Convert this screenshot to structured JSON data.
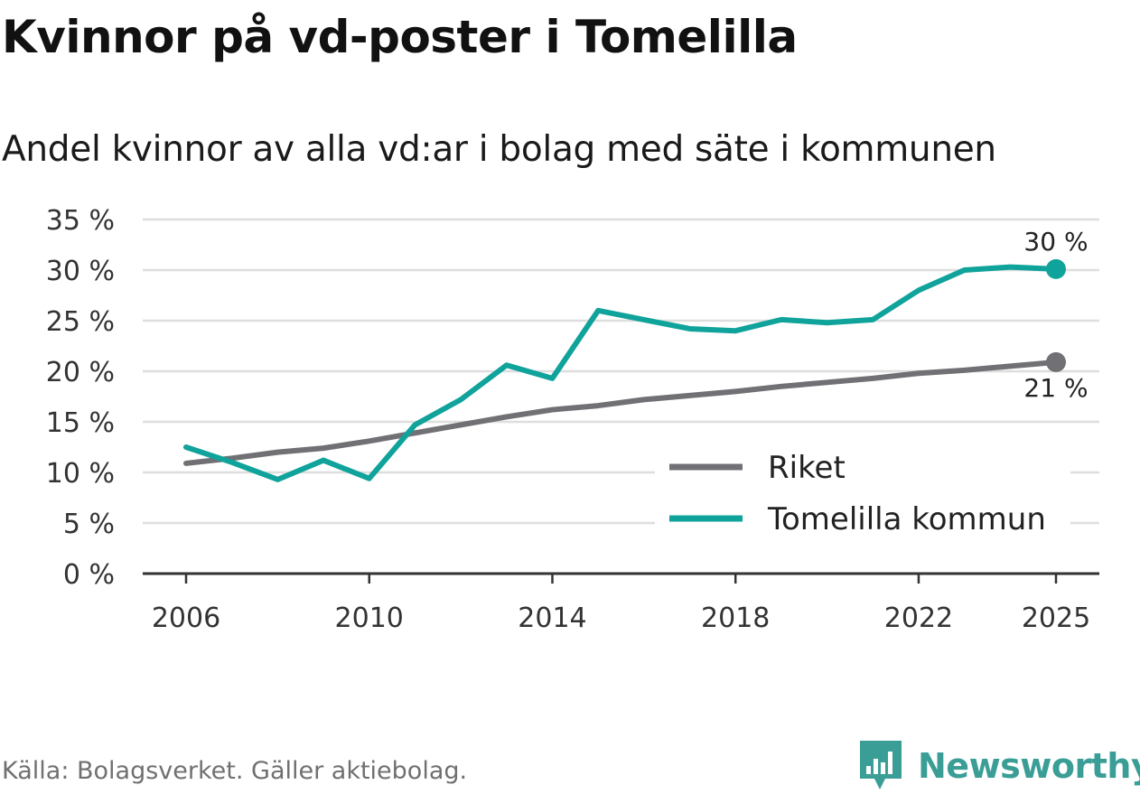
{
  "title": "Kvinnor på vd-poster i Tomelilla",
  "subtitle": "Andel kvinnor av alla vd:ar i bolag med säte i kommunen",
  "source": "Källa: Bolagsverket. Gäller aktiebolag.",
  "brand": {
    "name": "Newsworthy",
    "icon": "newsworthy-logo-icon",
    "color": "#3a9e97"
  },
  "chart_data": {
    "type": "line",
    "title": "Kvinnor på vd-poster i Tomelilla",
    "subtitle": "Andel kvinnor av alla vd:ar i bolag med säte i kommunen",
    "xlabel": "",
    "ylabel": "",
    "xlim": [
      2006,
      2025
    ],
    "ylim": [
      0,
      35
    ],
    "grid": true,
    "legend_position": "bottom-right",
    "x_ticks": [
      2006,
      2010,
      2014,
      2018,
      2022,
      2025
    ],
    "x_tick_labels": [
      "2006",
      "2010",
      "2014",
      "2018",
      "2022",
      "2025"
    ],
    "y_ticks": [
      0,
      5,
      10,
      15,
      20,
      25,
      30,
      35
    ],
    "y_tick_labels": [
      "0 %",
      "5 %",
      "10 %",
      "15 %",
      "20 %",
      "25 %",
      "30 %",
      "35 %"
    ],
    "x": [
      2006,
      2007,
      2008,
      2009,
      2010,
      2011,
      2012,
      2013,
      2014,
      2015,
      2016,
      2017,
      2018,
      2019,
      2020,
      2021,
      2022,
      2023,
      2024,
      2025
    ],
    "series": [
      {
        "name": "Riket",
        "color": "#707075",
        "values": [
          10.9,
          11.4,
          12.0,
          12.4,
          13.1,
          13.9,
          14.7,
          15.5,
          16.2,
          16.6,
          17.2,
          17.6,
          18.0,
          18.5,
          18.9,
          19.3,
          19.8,
          20.1,
          20.5,
          20.9
        ],
        "end_label": "21 %"
      },
      {
        "name": "Tomelilla kommun",
        "color": "#10a39b",
        "values": [
          12.5,
          11.0,
          9.3,
          11.2,
          9.4,
          14.7,
          17.2,
          20.6,
          19.3,
          26.0,
          25.1,
          24.2,
          24.0,
          25.1,
          24.8,
          25.1,
          28.0,
          30.0,
          30.3,
          30.1
        ],
        "end_label": "30 %"
      }
    ]
  }
}
